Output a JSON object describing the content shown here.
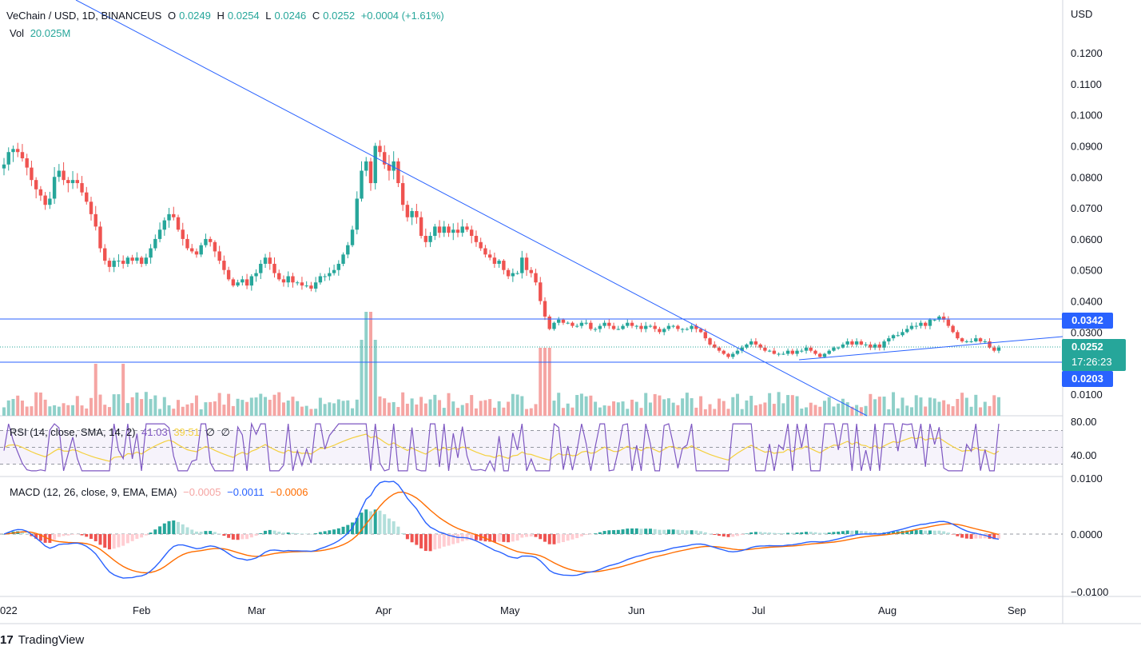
{
  "header": {
    "symbol": "VeChain / USD, 1D, BINANCEUS",
    "open_label": "O",
    "open": "0.0249",
    "high_label": "H",
    "high": "0.0254",
    "low_label": "L",
    "low": "0.0246",
    "close_label": "C",
    "close": "0.0252",
    "change": "+0.0004 (+1.61%)",
    "vol_label": "Vol",
    "vol": "20.025M"
  },
  "axis": {
    "currency": "USD",
    "price_ticks": [
      "0.1200",
      "0.1100",
      "0.1000",
      "0.0900",
      "0.0800",
      "0.0700",
      "0.0600",
      "0.0500",
      "0.0400",
      "0.0300",
      "0.0100"
    ],
    "time_labels": [
      "022",
      "Feb",
      "Mar",
      "Apr",
      "May",
      "Jun",
      "Jul",
      "Aug",
      "Sep"
    ]
  },
  "levels": {
    "resistance": "0.0342",
    "support": "0.0203",
    "last_price": "0.0252",
    "countdown": "17:26:23"
  },
  "rsi": {
    "label": "RSI (14, close, SMA, 14, 2)",
    "value": "41.03",
    "sma": "39.51",
    "extra1": "∅",
    "extra2": "∅",
    "ticks": [
      "80.00",
      "40.00"
    ]
  },
  "macd": {
    "label": "MACD (12, 26, close, 9, EMA, EMA)",
    "hist": "−0.0005",
    "macd": "−0.0011",
    "signal": "−0.0006",
    "ticks": [
      "0.0100",
      "0.0000",
      "−0.0100"
    ]
  },
  "branding": {
    "logo_mark": "17",
    "name": "TradingView"
  },
  "colors": {
    "up": "#26a69a",
    "down": "#ef5350",
    "vol_up": "#8fd0c9",
    "vol_down": "#f5a5a3",
    "trend": "#2962ff",
    "rsi": "#7e57c2",
    "rsi_ma": "#f4d03f",
    "macd": "#2962ff",
    "signal": "#ff6d00",
    "level": "#2962ff"
  },
  "chart_data": {
    "type": "candlestick",
    "price_range": [
      0.0,
      0.13
    ],
    "closes": [
      0.084,
      0.088,
      0.089,
      0.088,
      0.086,
      0.083,
      0.079,
      0.076,
      0.074,
      0.071,
      0.073,
      0.08,
      0.082,
      0.079,
      0.078,
      0.079,
      0.078,
      0.075,
      0.072,
      0.068,
      0.064,
      0.057,
      0.053,
      0.051,
      0.053,
      0.053,
      0.052,
      0.054,
      0.053,
      0.054,
      0.052,
      0.054,
      0.057,
      0.06,
      0.063,
      0.066,
      0.068,
      0.067,
      0.063,
      0.06,
      0.057,
      0.056,
      0.055,
      0.058,
      0.06,
      0.059,
      0.056,
      0.053,
      0.05,
      0.047,
      0.045,
      0.046,
      0.047,
      0.045,
      0.048,
      0.049,
      0.052,
      0.054,
      0.052,
      0.049,
      0.047,
      0.046,
      0.048,
      0.046,
      0.046,
      0.045,
      0.045,
      0.044,
      0.046,
      0.048,
      0.048,
      0.049,
      0.05,
      0.052,
      0.055,
      0.058,
      0.063,
      0.073,
      0.082,
      0.085,
      0.078,
      0.09,
      0.088,
      0.084,
      0.082,
      0.085,
      0.078,
      0.071,
      0.067,
      0.069,
      0.067,
      0.061,
      0.059,
      0.061,
      0.064,
      0.062,
      0.064,
      0.062,
      0.063,
      0.062,
      0.064,
      0.063,
      0.061,
      0.059,
      0.057,
      0.055,
      0.054,
      0.052,
      0.053,
      0.05,
      0.048,
      0.049,
      0.049,
      0.054,
      0.05,
      0.049,
      0.046,
      0.04,
      0.035,
      0.031,
      0.033,
      0.034,
      0.033,
      0.033,
      0.032,
      0.032,
      0.033,
      0.033,
      0.031,
      0.031,
      0.032,
      0.033,
      0.032,
      0.031,
      0.031,
      0.032,
      0.033,
      0.032,
      0.032,
      0.031,
      0.032,
      0.032,
      0.031,
      0.03,
      0.031,
      0.032,
      0.032,
      0.031,
      0.031,
      0.031,
      0.032,
      0.031,
      0.03,
      0.028,
      0.026,
      0.025,
      0.024,
      0.023,
      0.022,
      0.023,
      0.024,
      0.025,
      0.026,
      0.027,
      0.026,
      0.025,
      0.024,
      0.024,
      0.023,
      0.023,
      0.023,
      0.024,
      0.023,
      0.024,
      0.024,
      0.025,
      0.024,
      0.023,
      0.022,
      0.023,
      0.024,
      0.025,
      0.025,
      0.026,
      0.027,
      0.026,
      0.027,
      0.026,
      0.026,
      0.025,
      0.026,
      0.025,
      0.027,
      0.028,
      0.029,
      0.029,
      0.03,
      0.031,
      0.032,
      0.032,
      0.033,
      0.032,
      0.034,
      0.034,
      0.035,
      0.034,
      0.032,
      0.03,
      0.028,
      0.027,
      0.027,
      0.027,
      0.028,
      0.027,
      0.027,
      0.025,
      0.024,
      0.025
    ],
    "resistance": 0.0342,
    "support": 0.0203,
    "last": 0.0252
  }
}
